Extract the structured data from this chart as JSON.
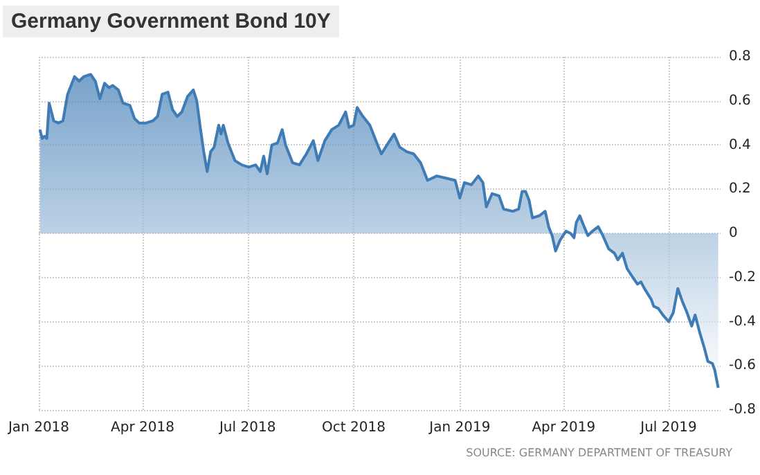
{
  "chart_data": {
    "type": "area",
    "title": "Germany Government Bond 10Y",
    "annotations": [
      "SOURCE: GERMANY DEPARTMENT OF TREASURY"
    ],
    "x": [
      "2018-01-02",
      "2018-01-04",
      "2018-01-06",
      "2018-01-08",
      "2018-01-10",
      "2018-01-14",
      "2018-01-18",
      "2018-01-22",
      "2018-01-26",
      "2018-02-01",
      "2018-02-05",
      "2018-02-09",
      "2018-02-15",
      "2018-02-19",
      "2018-02-23",
      "2018-02-27",
      "2018-03-03",
      "2018-03-06",
      "2018-03-11",
      "2018-03-15",
      "2018-03-21",
      "2018-03-25",
      "2018-03-29",
      "2018-04-04",
      "2018-04-10",
      "2018-04-14",
      "2018-04-18",
      "2018-04-23",
      "2018-04-27",
      "2018-05-01",
      "2018-05-05",
      "2018-05-10",
      "2018-05-15",
      "2018-05-18",
      "2018-05-21",
      "2018-05-24",
      "2018-05-27",
      "2018-05-30",
      "2018-06-02",
      "2018-06-06",
      "2018-06-08",
      "2018-06-10",
      "2018-06-14",
      "2018-06-20",
      "2018-06-26",
      "2018-07-02",
      "2018-07-08",
      "2018-07-12",
      "2018-07-15",
      "2018-07-18",
      "2018-07-22",
      "2018-07-27",
      "2018-07-31",
      "2018-08-03",
      "2018-08-09",
      "2018-08-15",
      "2018-08-21",
      "2018-08-27",
      "2018-08-31",
      "2018-09-06",
      "2018-09-12",
      "2018-09-18",
      "2018-09-24",
      "2018-09-27",
      "2018-10-01",
      "2018-10-04",
      "2018-10-09",
      "2018-10-15",
      "2018-10-21",
      "2018-10-25",
      "2018-10-31",
      "2018-11-05",
      "2018-11-10",
      "2018-11-16",
      "2018-11-22",
      "2018-11-28",
      "2018-12-04",
      "2018-12-12",
      "2018-12-20",
      "2018-12-28",
      "2019-01-01",
      "2019-01-05",
      "2019-01-11",
      "2019-01-17",
      "2019-01-21",
      "2019-01-24",
      "2019-01-29",
      "2019-02-04",
      "2019-02-08",
      "2019-02-16",
      "2019-02-21",
      "2019-02-24",
      "2019-02-27",
      "2019-03-02",
      "2019-03-05",
      "2019-03-11",
      "2019-03-16",
      "2019-03-19",
      "2019-03-22",
      "2019-03-25",
      "2019-03-29",
      "2019-04-03",
      "2019-04-07",
      "2019-04-10",
      "2019-04-12",
      "2019-04-15",
      "2019-04-18",
      "2019-04-22",
      "2019-04-26",
      "2019-05-01",
      "2019-05-05",
      "2019-05-10",
      "2019-05-15",
      "2019-05-18",
      "2019-05-22",
      "2019-05-26",
      "2019-05-31",
      "2019-06-04",
      "2019-06-07",
      "2019-06-10",
      "2019-06-16",
      "2019-06-18",
      "2019-06-22",
      "2019-06-26",
      "2019-07-01",
      "2019-07-05",
      "2019-07-09",
      "2019-07-13",
      "2019-07-17",
      "2019-07-21",
      "2019-07-24",
      "2019-07-28",
      "2019-08-01",
      "2019-08-04",
      "2019-08-08",
      "2019-08-10",
      "2019-08-13"
    ],
    "series": [
      {
        "color": "#3f7cb5",
        "values": [
          0.47,
          0.43,
          0.44,
          0.43,
          0.59,
          0.51,
          0.5,
          0.51,
          0.63,
          0.71,
          0.69,
          0.71,
          0.72,
          0.69,
          0.61,
          0.68,
          0.66,
          0.67,
          0.65,
          0.59,
          0.58,
          0.52,
          0.5,
          0.5,
          0.51,
          0.53,
          0.63,
          0.64,
          0.56,
          0.53,
          0.55,
          0.62,
          0.65,
          0.6,
          0.48,
          0.37,
          0.28,
          0.37,
          0.39,
          0.49,
          0.45,
          0.49,
          0.41,
          0.33,
          0.31,
          0.3,
          0.31,
          0.28,
          0.35,
          0.27,
          0.4,
          0.41,
          0.47,
          0.4,
          0.32,
          0.31,
          0.36,
          0.42,
          0.33,
          0.42,
          0.47,
          0.49,
          0.55,
          0.48,
          0.49,
          0.57,
          0.53,
          0.49,
          0.41,
          0.36,
          0.41,
          0.45,
          0.39,
          0.37,
          0.36,
          0.32,
          0.24,
          0.26,
          0.25,
          0.24,
          0.16,
          0.23,
          0.22,
          0.26,
          0.23,
          0.12,
          0.18,
          0.17,
          0.11,
          0.1,
          0.11,
          0.19,
          0.19,
          0.15,
          0.07,
          0.08,
          0.1,
          0.03,
          -0.01,
          -0.08,
          -0.03,
          0.01,
          0.0,
          -0.02,
          0.05,
          0.08,
          0.04,
          -0.01,
          0.01,
          0.03,
          -0.01,
          -0.07,
          -0.09,
          -0.12,
          -0.09,
          -0.16,
          -0.2,
          -0.23,
          -0.22,
          -0.25,
          -0.3,
          -0.33,
          -0.34,
          -0.37,
          -0.4,
          -0.36,
          -0.25,
          -0.31,
          -0.36,
          -0.42,
          -0.37,
          -0.45,
          -0.52,
          -0.58,
          -0.59,
          -0.62,
          -0.7
        ]
      }
    ],
    "xlim": [
      "2018-01-01",
      "2019-08-15"
    ],
    "xticks": [
      {
        "value": "2018-01-01",
        "label": "Jan 2018"
      },
      {
        "value": "2018-04-01",
        "label": "Apr 2018"
      },
      {
        "value": "2018-07-01",
        "label": "Jul 2018"
      },
      {
        "value": "2018-10-01",
        "label": "Oct 2018"
      },
      {
        "value": "2019-01-01",
        "label": "Jan 2019"
      },
      {
        "value": "2019-04-01",
        "label": "Apr 2019"
      },
      {
        "value": "2019-07-01",
        "label": "Jul 2019"
      }
    ],
    "ylim": [
      -0.8,
      0.8
    ],
    "yticks": [
      -0.8,
      -0.6,
      -0.4,
      -0.2,
      0,
      0.2,
      0.4,
      0.6,
      0.8
    ],
    "grid": true
  }
}
